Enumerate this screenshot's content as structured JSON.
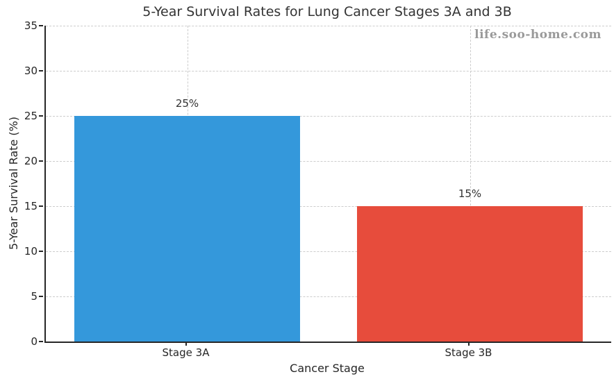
{
  "chart_data": {
    "type": "bar",
    "title": "5-Year Survival Rates for Lung Cancer Stages 3A and 3B",
    "xlabel": "Cancer Stage",
    "ylabel": "5-Year Survival Rate (%)",
    "categories": [
      "Stage 3A",
      "Stage 3B"
    ],
    "values": [
      25,
      15
    ],
    "value_labels": [
      "25%",
      "15%"
    ],
    "bar_colors": [
      "#3498db",
      "#e74c3c"
    ],
    "ylim": [
      0,
      35
    ],
    "yticks": [
      0,
      5,
      10,
      15,
      20,
      25,
      30,
      35
    ],
    "grid": "dashed horizontal and vertical gridlines",
    "legend": "none"
  },
  "watermark": {
    "text": "life.soo-home.com",
    "color": "#9a9a9a"
  },
  "style_colors": {
    "axis": "#262626",
    "gridline": "#cccccc",
    "title_text": "#333333",
    "background": "#ffffff"
  }
}
